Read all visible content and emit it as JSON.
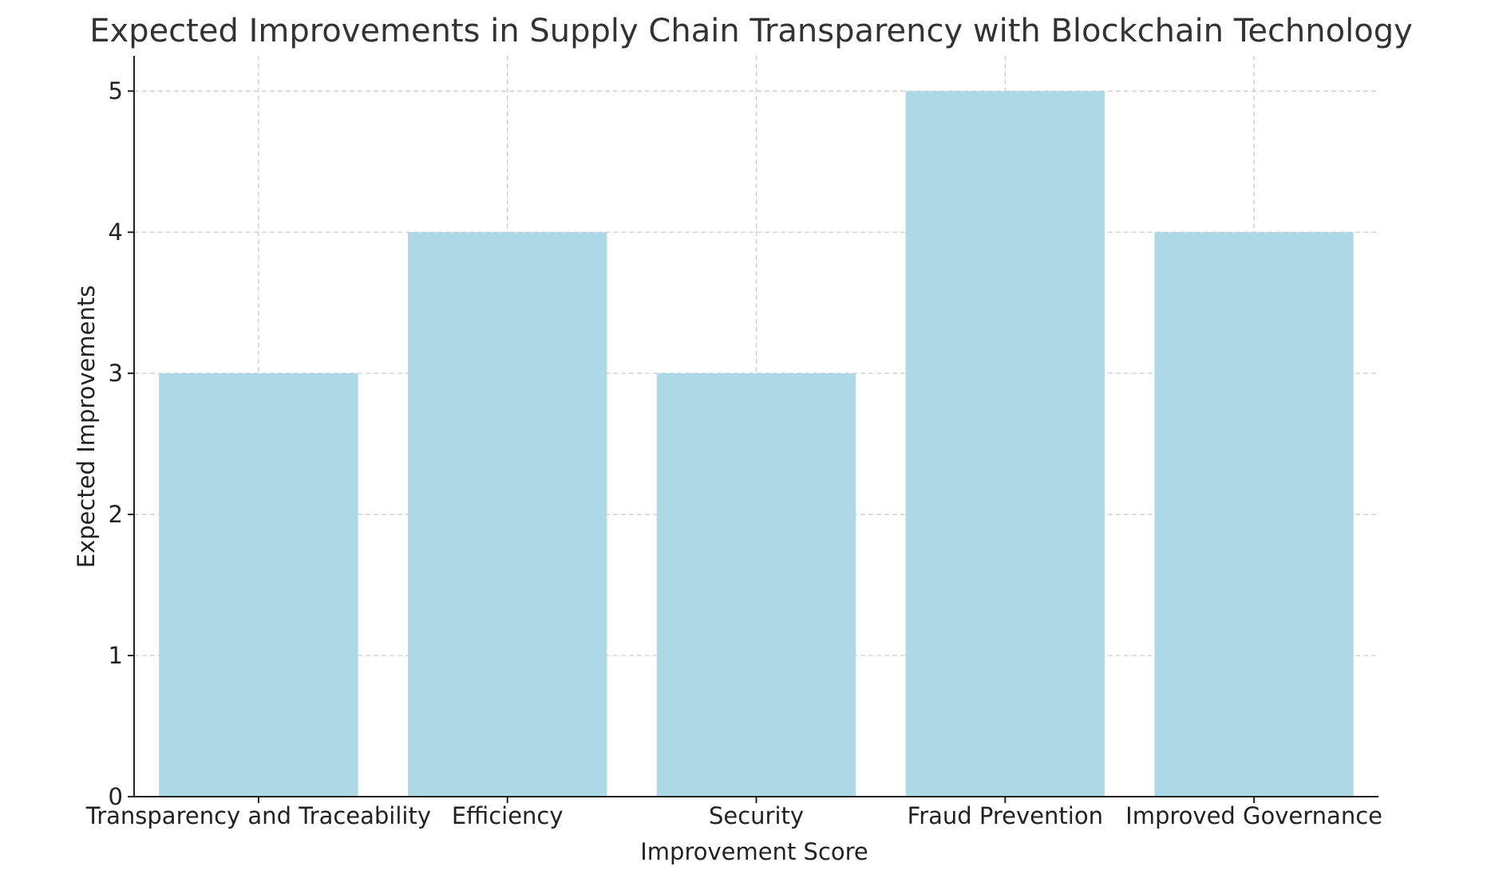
{
  "chart_data": {
    "type": "bar",
    "title": "Expected Improvements in Supply Chain Transparency with Blockchain Technology",
    "xlabel": "Improvement Score",
    "ylabel": "Expected Improvements",
    "categories": [
      "Transparency and Traceability",
      "Efficiency",
      "Security",
      "Fraud Prevention",
      "Improved Governance"
    ],
    "values": [
      3,
      4,
      3,
      5,
      4
    ],
    "ylim": [
      0,
      5.25
    ],
    "yticks": [
      0,
      1,
      2,
      3,
      4,
      5
    ],
    "grid": true,
    "bar_color": "#add8e6"
  }
}
